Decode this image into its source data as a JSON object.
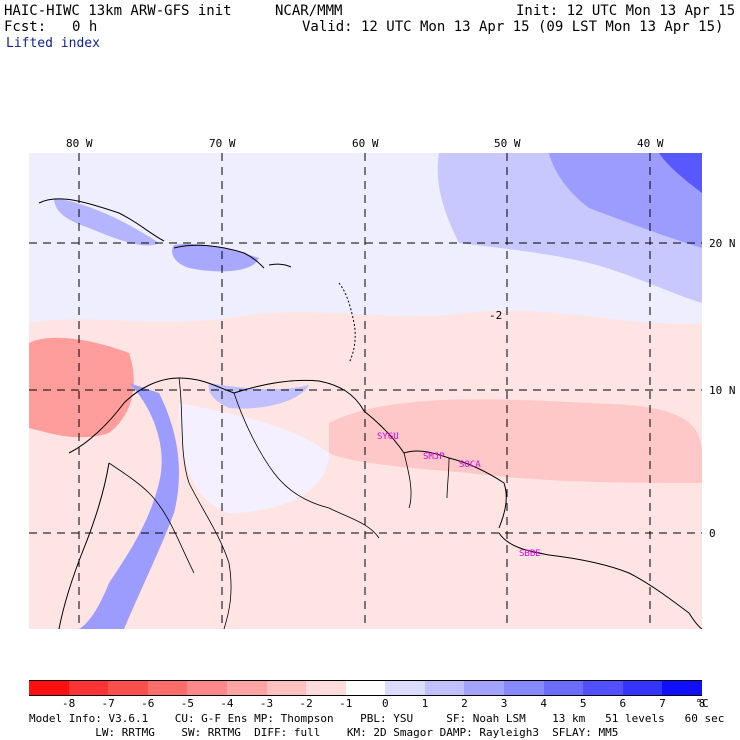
{
  "header": {
    "model_line": "HAIC-HIWC 13km ARW-GFS init",
    "org": "NCAR/MMM",
    "fcst_label": "Fcst:",
    "fcst_value": "0 h",
    "init": "Init: 12 UTC Mon 13 Apr 15",
    "valid": "Valid: 12 UTC Mon 13 Apr 15 (09 LST Mon 13 Apr 15)",
    "field": "Lifted index"
  },
  "map": {
    "lon_labels": [
      "80 W",
      "70 W",
      "60 W",
      "50 W",
      "40 W"
    ],
    "lat_labels": [
      "20 N",
      "10 N",
      "0"
    ],
    "contour_label": "-2",
    "stations": [
      "SYGU",
      "SMJP",
      "SOCA",
      "SBBE"
    ]
  },
  "colorbar": {
    "ticks": [
      "-8",
      "-7",
      "-6",
      "-5",
      "-4",
      "-3",
      "-2",
      "-1",
      "0",
      "1",
      "2",
      "3",
      "4",
      "5",
      "6",
      "7",
      "8"
    ],
    "unit": "°C",
    "colors": [
      "#ff1010",
      "#ff3434",
      "#ff5050",
      "#ff6c6c",
      "#ff8888",
      "#ffa4a4",
      "#ffc0c0",
      "#ffdcdc",
      "#ffffff",
      "#dcdcff",
      "#c0c0ff",
      "#a4a4ff",
      "#8888ff",
      "#6c6cff",
      "#5050ff",
      "#3434ff",
      "#1010ff"
    ]
  },
  "footer": {
    "line1": "Model Info: V3.6.1    CU: G-F Ens MP: Thompson    PBL: YSU     SF: Noah LSM    13 km   51 levels   60 sec",
    "line2": "          LW: RRTMG    SW: RRTMG  DIFF: full    KM: 2D Smagor DAMP: Rayleigh3  SFLAY: MM5"
  }
}
